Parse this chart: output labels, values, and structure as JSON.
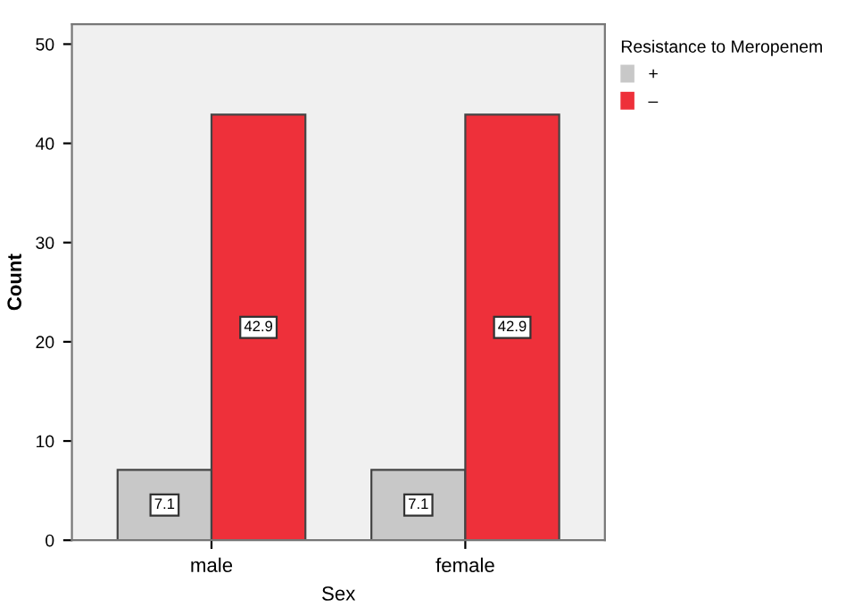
{
  "chart_data": {
    "type": "bar",
    "xlabel": "Sex",
    "ylabel": "Count",
    "legend_title": "Resistance to Meropenem",
    "categories": [
      "male",
      "female"
    ],
    "series": [
      {
        "name": "+",
        "color": "#c8c8c8",
        "values": [
          7.1,
          7.1
        ]
      },
      {
        "name": "–",
        "color": "#ee303a",
        "values": [
          42.9,
          42.9
        ]
      }
    ],
    "ylim": [
      0,
      52
    ],
    "yticks": [
      0,
      10,
      20,
      30,
      40,
      50
    ],
    "data_labels": true,
    "legend": "top right",
    "grid": false
  }
}
